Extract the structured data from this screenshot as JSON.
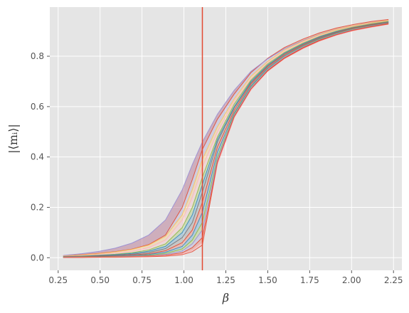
{
  "chart_data": {
    "type": "line",
    "title": "",
    "xlabel": "β",
    "ylabel": "|⟨m_i⟩|",
    "ylabel_display": "|⟨mᵢ⟩|",
    "xlim": [
      0.2,
      2.3
    ],
    "ylim": [
      -0.05,
      0.995
    ],
    "xticks": [
      0.25,
      0.5,
      0.75,
      1.0,
      1.25,
      1.5,
      1.75,
      2.0,
      2.25
    ],
    "xtick_labels": [
      "0.25",
      "0.50",
      "0.75",
      "1.00",
      "1.25",
      "1.50",
      "1.75",
      "2.00",
      "2.25"
    ],
    "yticks": [
      0.0,
      0.2,
      0.4,
      0.6,
      0.8
    ],
    "ytick_labels": [
      "0.0",
      "0.2",
      "0.4",
      "0.6",
      "0.8"
    ],
    "grid": true,
    "style": "ggplot",
    "vertical_line": {
      "x": 1.11,
      "color": "#E24A33"
    },
    "x": [
      0.28,
      0.39,
      0.49,
      0.59,
      0.69,
      0.79,
      0.89,
      0.99,
      1.05,
      1.11,
      1.2,
      1.3,
      1.4,
      1.5,
      1.6,
      1.71,
      1.81,
      1.91,
      2.01,
      2.12,
      2.22
    ],
    "series": [
      {
        "color": "#E24A33",
        "values": [
          0.008,
          0.012,
          0.017,
          0.024,
          0.034,
          0.052,
          0.09,
          0.2,
          0.31,
          0.43,
          0.55,
          0.65,
          0.735,
          0.792,
          0.835,
          0.868,
          0.893,
          0.912,
          0.926,
          0.938,
          0.946
        ]
      },
      {
        "color": "#988ED5",
        "values": [
          0.009,
          0.016,
          0.025,
          0.038,
          0.058,
          0.09,
          0.15,
          0.27,
          0.37,
          0.46,
          0.57,
          0.665,
          0.74,
          0.79,
          0.83,
          0.862,
          0.887,
          0.906,
          0.921,
          0.933,
          0.94
        ]
      },
      {
        "color": "#FBC15E",
        "values": [
          0.007,
          0.011,
          0.016,
          0.023,
          0.033,
          0.05,
          0.085,
          0.17,
          0.27,
          0.39,
          0.52,
          0.63,
          0.72,
          0.78,
          0.825,
          0.86,
          0.886,
          0.906,
          0.921,
          0.933,
          0.942
        ]
      },
      {
        "color": "#FFB5B8",
        "values": [
          0.006,
          0.009,
          0.013,
          0.018,
          0.026,
          0.04,
          0.07,
          0.15,
          0.24,
          0.36,
          0.5,
          0.62,
          0.71,
          0.775,
          0.82,
          0.856,
          0.882,
          0.902,
          0.918,
          0.93,
          0.939
        ]
      },
      {
        "color": "#8EBA42",
        "values": [
          0.005,
          0.007,
          0.01,
          0.014,
          0.02,
          0.031,
          0.055,
          0.12,
          0.2,
          0.32,
          0.48,
          0.61,
          0.705,
          0.77,
          0.815,
          0.852,
          0.879,
          0.9,
          0.916,
          0.929,
          0.938
        ]
      },
      {
        "color": "#348ABD",
        "values": [
          0.004,
          0.006,
          0.009,
          0.012,
          0.017,
          0.026,
          0.045,
          0.1,
          0.17,
          0.29,
          0.47,
          0.6,
          0.7,
          0.765,
          0.812,
          0.849,
          0.877,
          0.898,
          0.914,
          0.927,
          0.936
        ]
      },
      {
        "color": "#777777",
        "values": [
          0.003,
          0.005,
          0.007,
          0.01,
          0.014,
          0.021,
          0.036,
          0.08,
          0.14,
          0.26,
          0.46,
          0.595,
          0.695,
          0.762,
          0.81,
          0.847,
          0.875,
          0.896,
          0.913,
          0.926,
          0.935
        ]
      },
      {
        "color": "#E24A33",
        "values": [
          0.003,
          0.004,
          0.006,
          0.008,
          0.011,
          0.016,
          0.028,
          0.06,
          0.11,
          0.22,
          0.44,
          0.585,
          0.69,
          0.758,
          0.806,
          0.844,
          0.872,
          0.894,
          0.911,
          0.924,
          0.934
        ]
      },
      {
        "color": "#348ABD",
        "values": [
          0.002,
          0.003,
          0.005,
          0.007,
          0.009,
          0.013,
          0.022,
          0.045,
          0.09,
          0.18,
          0.42,
          0.575,
          0.683,
          0.753,
          0.802,
          0.841,
          0.87,
          0.892,
          0.909,
          0.922,
          0.933
        ]
      },
      {
        "color": "#8EBA42",
        "values": [
          0.002,
          0.003,
          0.004,
          0.005,
          0.007,
          0.01,
          0.017,
          0.035,
          0.07,
          0.14,
          0.4,
          0.57,
          0.678,
          0.75,
          0.8,
          0.839,
          0.868,
          0.89,
          0.908,
          0.921,
          0.932
        ]
      },
      {
        "color": "#988ED5",
        "values": [
          0.002,
          0.002,
          0.003,
          0.004,
          0.006,
          0.008,
          0.013,
          0.027,
          0.055,
          0.11,
          0.39,
          0.565,
          0.675,
          0.748,
          0.798,
          0.837,
          0.866,
          0.888,
          0.906,
          0.92,
          0.931
        ]
      },
      {
        "color": "#E24A33",
        "values": [
          0.001,
          0.002,
          0.003,
          0.004,
          0.005,
          0.007,
          0.01,
          0.02,
          0.04,
          0.08,
          0.38,
          0.56,
          0.67,
          0.744,
          0.794,
          0.834,
          0.864,
          0.886,
          0.904,
          0.918,
          0.93
        ]
      },
      {
        "color": "#FFB5B8",
        "values": [
          0.001,
          0.002,
          0.002,
          0.003,
          0.004,
          0.005,
          0.008,
          0.015,
          0.03,
          0.06,
          0.37,
          0.555,
          0.666,
          0.74,
          0.79,
          0.83,
          0.86,
          0.883,
          0.901,
          0.915,
          0.927
        ]
      },
      {
        "color": "#E24A33",
        "values": [
          0.001,
          0.001,
          0.002,
          0.002,
          0.003,
          0.004,
          0.006,
          0.012,
          0.024,
          0.05,
          0.38,
          0.56,
          0.67,
          0.742,
          0.792,
          0.832,
          0.862,
          0.885,
          0.903,
          0.917,
          0.928
        ]
      }
    ]
  }
}
